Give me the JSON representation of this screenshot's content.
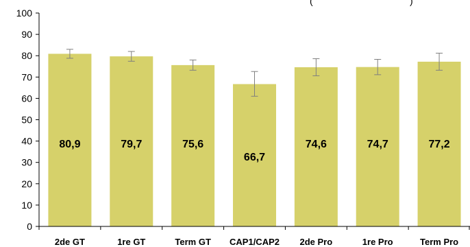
{
  "chart_data": {
    "type": "bar",
    "title": "",
    "xlabel": "",
    "ylabel": "",
    "categories": [
      "2de GT",
      "1re GT",
      "Term GT",
      "CAP1/CAP2",
      "2de Pro",
      "1re Pro",
      "Term Pro"
    ],
    "values": [
      80.9,
      79.7,
      75.6,
      66.7,
      74.6,
      74.7,
      77.2
    ],
    "data_labels": [
      "80,9",
      "79,7",
      "75,6",
      "66,7",
      "74,6",
      "74,7",
      "77,2"
    ],
    "error_low": [
      78.8,
      77.4,
      73.2,
      61.0,
      70.6,
      71.1,
      73.2
    ],
    "error_high": [
      83.0,
      82.0,
      78.0,
      72.6,
      78.6,
      78.3,
      81.2
    ],
    "ylim": [
      0,
      100
    ],
    "yticks": [
      0,
      10,
      20,
      30,
      40,
      50,
      60,
      70,
      80,
      90,
      100
    ],
    "grid": false,
    "top_note_fragment": "(",
    "top_note_fragment_end": ")",
    "colors": {
      "bar": "#d6d16a",
      "error": "#7f7f7f",
      "axis": "#000000"
    }
  }
}
